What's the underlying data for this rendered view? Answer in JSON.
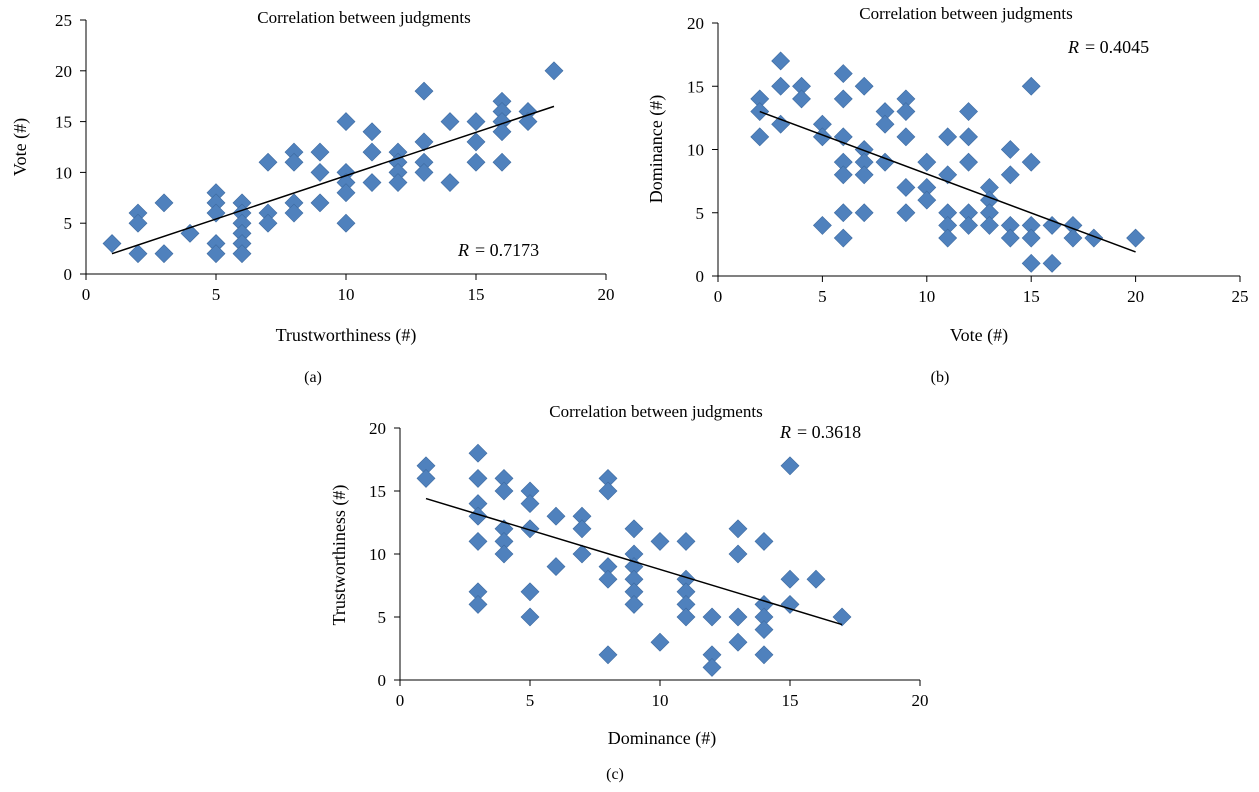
{
  "colors": {
    "marker": "#4f81bd",
    "axis": "#000000",
    "trend": "#000000"
  },
  "chart_data": [
    {
      "id": "a",
      "type": "scatter",
      "title": "Correlation between judgments",
      "xlabel": "Trustworthiness (#)",
      "ylabel": "Vote (#)",
      "xlim": [
        0,
        20
      ],
      "ylim": [
        0,
        25
      ],
      "xticks": [
        0,
        5,
        10,
        15,
        20
      ],
      "yticks": [
        0,
        5,
        10,
        15,
        20,
        25
      ],
      "r_label": "R",
      "r_value": "= 0.7173",
      "panel_label": "(a)",
      "grid": false,
      "trendline": {
        "x": [
          1,
          18
        ],
        "y": [
          2,
          16.5
        ]
      },
      "points": [
        [
          1,
          3
        ],
        [
          2,
          6
        ],
        [
          2,
          5
        ],
        [
          2,
          2
        ],
        [
          3,
          7
        ],
        [
          3,
          2
        ],
        [
          4,
          4
        ],
        [
          5,
          8
        ],
        [
          5,
          7
        ],
        [
          5,
          6
        ],
        [
          5,
          3
        ],
        [
          5,
          2
        ],
        [
          6,
          7
        ],
        [
          6,
          6
        ],
        [
          6,
          5
        ],
        [
          6,
          4
        ],
        [
          6,
          3
        ],
        [
          6,
          2
        ],
        [
          7,
          11
        ],
        [
          7,
          6
        ],
        [
          7,
          5
        ],
        [
          8,
          12
        ],
        [
          8,
          11
        ],
        [
          8,
          7
        ],
        [
          8,
          6
        ],
        [
          9,
          12
        ],
        [
          9,
          10
        ],
        [
          9,
          7
        ],
        [
          10,
          15
        ],
        [
          10,
          10
        ],
        [
          10,
          9
        ],
        [
          10,
          8
        ],
        [
          10,
          5
        ],
        [
          11,
          14
        ],
        [
          11,
          12
        ],
        [
          11,
          9
        ],
        [
          12,
          12
        ],
        [
          12,
          11
        ],
        [
          12,
          10
        ],
        [
          12,
          9
        ],
        [
          13,
          18
        ],
        [
          13,
          13
        ],
        [
          13,
          11
        ],
        [
          13,
          10
        ],
        [
          14,
          15
        ],
        [
          14,
          9
        ],
        [
          15,
          15
        ],
        [
          15,
          13
        ],
        [
          15,
          11
        ],
        [
          16,
          17
        ],
        [
          16,
          16
        ],
        [
          16,
          15
        ],
        [
          16,
          14
        ],
        [
          16,
          11
        ],
        [
          17,
          16
        ],
        [
          17,
          15
        ],
        [
          18,
          20
        ]
      ]
    },
    {
      "id": "b",
      "type": "scatter",
      "title": "Correlation between judgments",
      "xlabel": "Vote (#)",
      "ylabel": "Dominance (#)",
      "xlim": [
        0,
        25
      ],
      "ylim": [
        0,
        20
      ],
      "xticks": [
        0,
        5,
        10,
        15,
        20,
        25
      ],
      "yticks": [
        0,
        5,
        10,
        15,
        20
      ],
      "r_label": "R",
      "r_value": "= 0.4045",
      "panel_label": "(b)",
      "grid": false,
      "trendline": {
        "x": [
          2,
          20
        ],
        "y": [
          13,
          1.9
        ]
      },
      "points": [
        [
          2,
          14
        ],
        [
          2,
          13
        ],
        [
          2,
          11
        ],
        [
          3,
          17
        ],
        [
          3,
          15
        ],
        [
          3,
          12
        ],
        [
          4,
          15
        ],
        [
          4,
          14
        ],
        [
          5,
          12
        ],
        [
          5,
          11
        ],
        [
          5,
          4
        ],
        [
          6,
          16
        ],
        [
          6,
          14
        ],
        [
          6,
          11
        ],
        [
          6,
          9
        ],
        [
          6,
          8
        ],
        [
          6,
          5
        ],
        [
          6,
          3
        ],
        [
          7,
          15
        ],
        [
          7,
          10
        ],
        [
          7,
          9
        ],
        [
          7,
          8
        ],
        [
          7,
          5
        ],
        [
          8,
          13
        ],
        [
          8,
          12
        ],
        [
          8,
          9
        ],
        [
          9,
          14
        ],
        [
          9,
          13
        ],
        [
          9,
          11
        ],
        [
          9,
          7
        ],
        [
          9,
          5
        ],
        [
          10,
          9
        ],
        [
          10,
          7
        ],
        [
          10,
          6
        ],
        [
          11,
          11
        ],
        [
          11,
          8
        ],
        [
          11,
          5
        ],
        [
          11,
          4
        ],
        [
          11,
          3
        ],
        [
          12,
          13
        ],
        [
          12,
          11
        ],
        [
          12,
          9
        ],
        [
          12,
          5
        ],
        [
          12,
          4
        ],
        [
          13,
          7
        ],
        [
          13,
          6
        ],
        [
          13,
          5
        ],
        [
          13,
          4
        ],
        [
          14,
          10
        ],
        [
          14,
          8
        ],
        [
          14,
          4
        ],
        [
          14,
          3
        ],
        [
          15,
          15
        ],
        [
          15,
          9
        ],
        [
          15,
          4
        ],
        [
          15,
          3
        ],
        [
          15,
          1
        ],
        [
          16,
          4
        ],
        [
          16,
          1
        ],
        [
          17,
          4
        ],
        [
          17,
          3
        ],
        [
          18,
          3
        ],
        [
          20,
          3
        ]
      ]
    },
    {
      "id": "c",
      "type": "scatter",
      "title": "Correlation between judgments",
      "xlabel": "Dominance (#)",
      "ylabel": "Trustworthiness (#)",
      "xlim": [
        0,
        20
      ],
      "ylim": [
        0,
        20
      ],
      "xticks": [
        0,
        5,
        10,
        15,
        20
      ],
      "yticks": [
        0,
        5,
        10,
        15,
        20
      ],
      "r_label": "R",
      "r_value": "= 0.3618",
      "panel_label": "(c)",
      "grid": false,
      "trendline": {
        "x": [
          1,
          17
        ],
        "y": [
          14.4,
          4.4
        ]
      },
      "points": [
        [
          1,
          17
        ],
        [
          1,
          16
        ],
        [
          3,
          18
        ],
        [
          3,
          16
        ],
        [
          3,
          14
        ],
        [
          3,
          13
        ],
        [
          3,
          11
        ],
        [
          3,
          7
        ],
        [
          3,
          6
        ],
        [
          4,
          16
        ],
        [
          4,
          15
        ],
        [
          4,
          12
        ],
        [
          4,
          11
        ],
        [
          4,
          10
        ],
        [
          5,
          15
        ],
        [
          5,
          14
        ],
        [
          5,
          12
        ],
        [
          5,
          7
        ],
        [
          5,
          5
        ],
        [
          6,
          13
        ],
        [
          6,
          9
        ],
        [
          7,
          13
        ],
        [
          7,
          12
        ],
        [
          7,
          10
        ],
        [
          8,
          16
        ],
        [
          8,
          15
        ],
        [
          8,
          9
        ],
        [
          8,
          8
        ],
        [
          8,
          2
        ],
        [
          9,
          12
        ],
        [
          9,
          10
        ],
        [
          9,
          9
        ],
        [
          9,
          8
        ],
        [
          9,
          7
        ],
        [
          9,
          6
        ],
        [
          10,
          11
        ],
        [
          10,
          3
        ],
        [
          11,
          11
        ],
        [
          11,
          8
        ],
        [
          11,
          7
        ],
        [
          11,
          6
        ],
        [
          11,
          5
        ],
        [
          12,
          5
        ],
        [
          12,
          2
        ],
        [
          12,
          1
        ],
        [
          13,
          12
        ],
        [
          13,
          10
        ],
        [
          13,
          5
        ],
        [
          13,
          3
        ],
        [
          14,
          11
        ],
        [
          14,
          6
        ],
        [
          14,
          5
        ],
        [
          14,
          4
        ],
        [
          14,
          2
        ],
        [
          15,
          17
        ],
        [
          15,
          8
        ],
        [
          15,
          6
        ],
        [
          16,
          8
        ],
        [
          17,
          5
        ]
      ]
    }
  ]
}
